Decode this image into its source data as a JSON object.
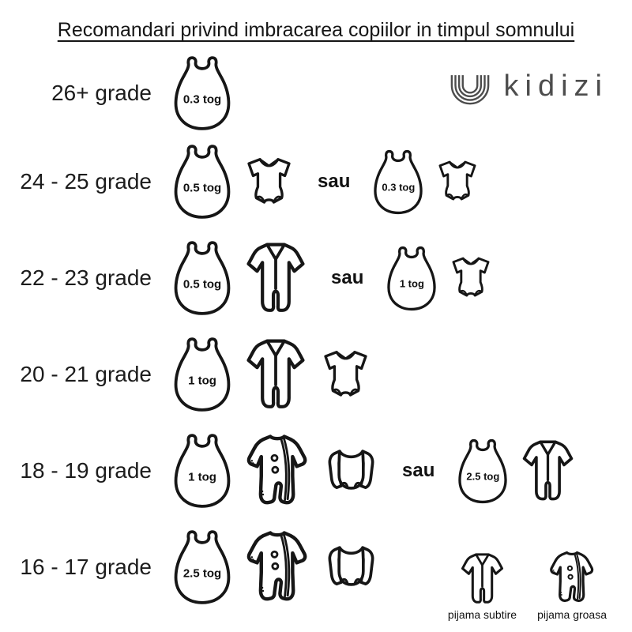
{
  "title": "Recomandari privind imbracarea copiilor in timpul somnului",
  "logo": {
    "text": "kidizi"
  },
  "or_label": "sau",
  "colors": {
    "ink": "#161616",
    "logo_gray": "#4d4d4d",
    "background": "#ffffff"
  },
  "rows": [
    {
      "temperature": "26+ grade",
      "options": [
        {
          "items": [
            {
              "type": "sleepbag",
              "tog": "0.3 tog"
            }
          ]
        }
      ]
    },
    {
      "temperature": "24 - 25 grade",
      "options": [
        {
          "items": [
            {
              "type": "sleepbag",
              "tog": "0.5 tog"
            },
            {
              "type": "bodysuit-short"
            }
          ]
        },
        {
          "items": [
            {
              "type": "sleepbag",
              "tog": "0.3 tog"
            },
            {
              "type": "bodysuit-short"
            }
          ]
        }
      ]
    },
    {
      "temperature": "22 - 23 grade",
      "options": [
        {
          "items": [
            {
              "type": "sleepbag",
              "tog": "0.5 tog"
            },
            {
              "type": "pajama-thin"
            }
          ]
        },
        {
          "items": [
            {
              "type": "sleepbag",
              "tog": "1 tog"
            },
            {
              "type": "bodysuit-short"
            }
          ]
        }
      ]
    },
    {
      "temperature": "20 - 21 grade",
      "options": [
        {
          "items": [
            {
              "type": "sleepbag",
              "tog": "1 tog"
            },
            {
              "type": "pajama-thin"
            },
            {
              "type": "bodysuit-short"
            }
          ]
        }
      ]
    },
    {
      "temperature": "18 - 19 grade",
      "options": [
        {
          "items": [
            {
              "type": "sleepbag",
              "tog": "1 tog"
            },
            {
              "type": "pajama-thick"
            },
            {
              "type": "bodysuit-long"
            }
          ]
        },
        {
          "items": [
            {
              "type": "sleepbag",
              "tog": "2.5 tog"
            },
            {
              "type": "pajama-thin"
            }
          ]
        }
      ]
    },
    {
      "temperature": "16 - 17 grade",
      "options": [
        {
          "items": [
            {
              "type": "sleepbag",
              "tog": "2.5 tog"
            },
            {
              "type": "pajama-thick"
            },
            {
              "type": "bodysuit-long"
            }
          ]
        }
      ]
    }
  ],
  "legend": [
    {
      "type": "pajama-thin",
      "label": "pijama subtire"
    },
    {
      "type": "pajama-thick",
      "label": "pijama groasa"
    }
  ]
}
